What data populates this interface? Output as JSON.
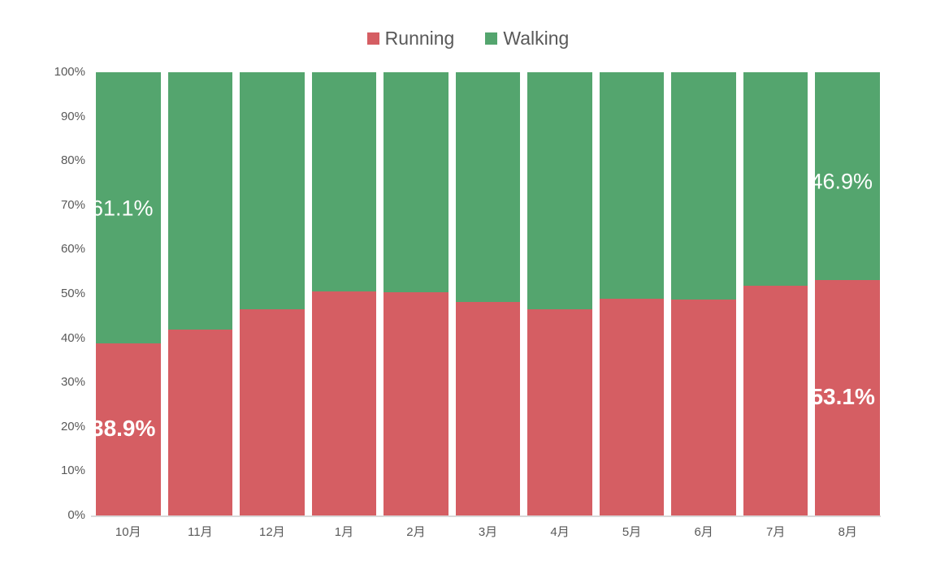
{
  "page": {
    "background": "#ffffff"
  },
  "chart_data": {
    "type": "bar",
    "variant": "stacked-100-percent-column",
    "title": "",
    "xlabel": "",
    "ylabel": "",
    "grid": false,
    "legend_position": "top",
    "ylim": [
      0,
      100
    ],
    "y_ticks": [
      "100%",
      "90%",
      "80%",
      "70%",
      "60%",
      "50%",
      "40%",
      "30%",
      "20%",
      "10%",
      "0%"
    ],
    "categories": [
      "10月",
      "11月",
      "12月",
      "1月",
      "2月",
      "3月",
      "4月",
      "5月",
      "6月",
      "7月",
      "8月"
    ],
    "series": [
      {
        "name": "Running",
        "color": "#d55e63",
        "values": [
          38.9,
          41.9,
          46.5,
          50.6,
          50.4,
          48.2,
          46.6,
          48.9,
          48.8,
          51.8,
          53.1
        ]
      },
      {
        "name": "Walking",
        "color": "#54a56e",
        "values": [
          61.1,
          58.1,
          53.5,
          49.4,
          49.6,
          51.8,
          53.4,
          51.1,
          51.2,
          48.2,
          46.9
        ]
      }
    ],
    "data_labels": [
      {
        "category": "10月",
        "series": "Walking",
        "text": "61.1%",
        "bold": false,
        "y_pct": 30.8
      },
      {
        "category": "10月",
        "series": "Running",
        "text": "38.9%",
        "bold": true,
        "y_pct": 80.4
      },
      {
        "category": "8月",
        "series": "Walking",
        "text": "46.9%",
        "bold": false,
        "y_pct": 24.7
      },
      {
        "category": "8月",
        "series": "Running",
        "text": "53.1%",
        "bold": true,
        "y_pct": 73.3
      }
    ]
  },
  "axis_style": {
    "tick_color": "#595959",
    "axis_line_color": "#d9d9d9"
  }
}
